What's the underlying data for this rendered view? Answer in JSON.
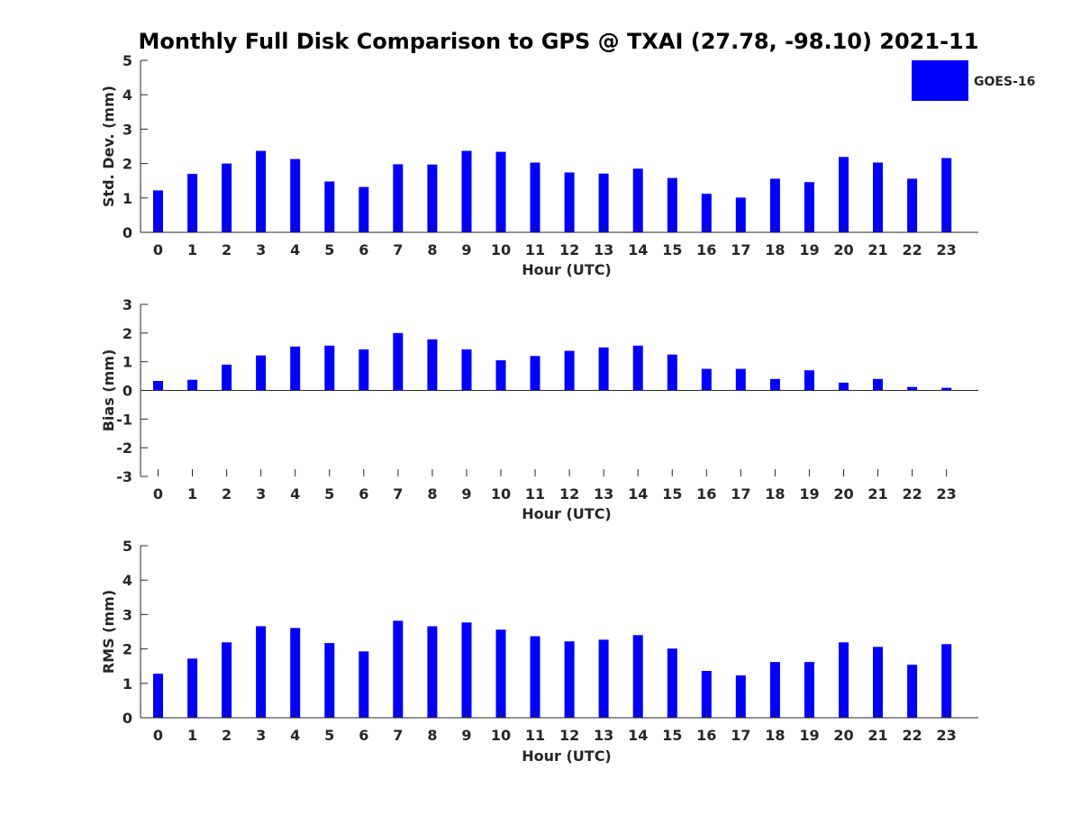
{
  "title": "Monthly Full Disk Comparison to GPS @ TXAI (27.78, -98.10) 2021-11",
  "legend": {
    "label": "GOES-16",
    "color": "#0000FF",
    "position": "top-right"
  },
  "chart_data": [
    {
      "type": "bar",
      "ylabel": "Std. Dev. (mm)",
      "xlabel": "Hour (UTC)",
      "ylim": [
        0,
        5
      ],
      "yticks": [
        0,
        1,
        2,
        3,
        4,
        5
      ],
      "categories": [
        "0",
        "1",
        "2",
        "3",
        "4",
        "5",
        "6",
        "7",
        "8",
        "9",
        "10",
        "11",
        "12",
        "13",
        "14",
        "15",
        "16",
        "17",
        "18",
        "19",
        "20",
        "21",
        "22",
        "23"
      ],
      "series": [
        {
          "name": "GOES-16",
          "color": "#0000FF",
          "values": [
            1.22,
            1.7,
            2.0,
            2.37,
            2.13,
            1.48,
            1.32,
            1.98,
            1.97,
            2.37,
            2.34,
            2.03,
            1.74,
            1.71,
            1.85,
            1.58,
            1.12,
            1.01,
            1.56,
            1.46,
            2.19,
            2.03,
            1.56,
            2.16
          ]
        }
      ]
    },
    {
      "type": "bar",
      "ylabel": "Bias (mm)",
      "xlabel": "Hour (UTC)",
      "ylim": [
        -3,
        3
      ],
      "yticks": [
        -3,
        -2,
        -1,
        0,
        1,
        2,
        3
      ],
      "categories": [
        "0",
        "1",
        "2",
        "3",
        "4",
        "5",
        "6",
        "7",
        "8",
        "9",
        "10",
        "11",
        "12",
        "13",
        "14",
        "15",
        "16",
        "17",
        "18",
        "19",
        "20",
        "21",
        "22",
        "23"
      ],
      "series": [
        {
          "name": "GOES-16",
          "color": "#0000FF",
          "values": [
            0.33,
            0.37,
            0.9,
            1.22,
            1.53,
            1.56,
            1.43,
            2.0,
            1.78,
            1.43,
            1.05,
            1.2,
            1.38,
            1.5,
            1.56,
            1.25,
            0.75,
            0.75,
            0.4,
            0.7,
            0.27,
            0.4,
            0.12,
            0.09
          ]
        }
      ]
    },
    {
      "type": "bar",
      "ylabel": "RMS (mm)",
      "xlabel": "Hour (UTC)",
      "ylim": [
        0,
        5
      ],
      "yticks": [
        0,
        1,
        2,
        3,
        4,
        5
      ],
      "categories": [
        "0",
        "1",
        "2",
        "3",
        "4",
        "5",
        "6",
        "7",
        "8",
        "9",
        "10",
        "11",
        "12",
        "13",
        "14",
        "15",
        "16",
        "17",
        "18",
        "19",
        "20",
        "21",
        "22",
        "23"
      ],
      "series": [
        {
          "name": "GOES-16",
          "color": "#0000FF",
          "values": [
            1.28,
            1.72,
            2.19,
            2.66,
            2.61,
            2.17,
            1.93,
            2.82,
            2.66,
            2.77,
            2.56,
            2.37,
            2.22,
            2.27,
            2.4,
            2.01,
            1.36,
            1.23,
            1.62,
            1.62,
            2.19,
            2.06,
            1.54,
            2.14
          ]
        }
      ]
    }
  ]
}
